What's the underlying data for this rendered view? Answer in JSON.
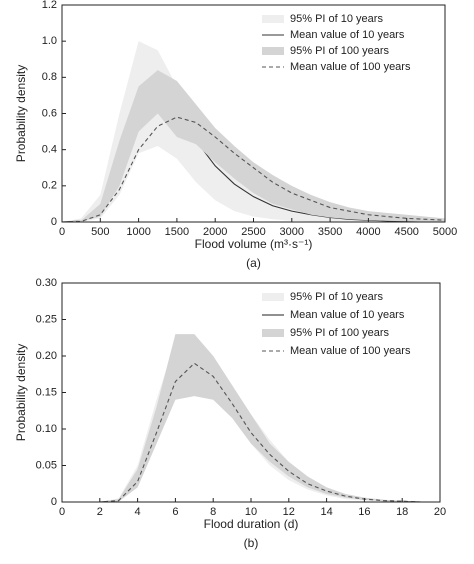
{
  "chart_data": [
    {
      "type": "line",
      "caption": "(a)",
      "xlabel": "Flood volume (m³·s⁻¹)",
      "ylabel": "Probability density",
      "xlim": [
        0,
        5000
      ],
      "xticks": [
        0,
        500,
        1000,
        1500,
        2000,
        2500,
        3000,
        3500,
        4000,
        4500,
        5000
      ],
      "ylim": [
        0,
        1.2
      ],
      "yticks": [
        0,
        0.2,
        0.4,
        0.6,
        0.8,
        {
          "value": 1,
          "label": "1.0"
        },
        1.2
      ],
      "legend": "upper right",
      "x": [
        0,
        250,
        500,
        750,
        1000,
        1250,
        1500,
        1750,
        2000,
        2250,
        2500,
        2750,
        3000,
        3250,
        3500,
        3750,
        4000,
        4250,
        4500,
        4750,
        5000
      ],
      "series": [
        {
          "name": "95% PI of 10 years",
          "style": "band",
          "color": "#eeeeee",
          "lower": [
            0,
            0,
            0.02,
            0.15,
            0.38,
            0.42,
            0.35,
            0.22,
            0.12,
            0.06,
            0.03,
            0.015,
            0.007,
            0.003,
            0.001,
            0,
            0,
            0,
            0,
            0,
            0
          ],
          "upper": [
            0,
            0.02,
            0.15,
            0.6,
            1.0,
            0.95,
            0.75,
            0.55,
            0.4,
            0.3,
            0.22,
            0.16,
            0.12,
            0.09,
            0.07,
            0.05,
            0.04,
            0.03,
            0.02,
            0.015,
            0.01
          ]
        },
        {
          "name": "Mean value of 10 years",
          "style": "solid",
          "color": "#333333",
          "values": [
            0,
            0.005,
            0.06,
            0.3,
            0.62,
            0.73,
            0.62,
            0.45,
            0.31,
            0.21,
            0.14,
            0.09,
            0.06,
            0.04,
            0.025,
            0.015,
            0.01,
            0.006,
            0.004,
            0.002,
            0.001
          ]
        },
        {
          "name": "95% PI of 100 years",
          "style": "band",
          "color": "#d4d4d4",
          "lower": [
            0,
            0.002,
            0.03,
            0.2,
            0.5,
            0.6,
            0.47,
            0.43,
            0.33,
            0.24,
            0.16,
            0.1,
            0.07,
            0.04,
            0.025,
            0.015,
            0.01,
            0.006,
            0.004,
            0.002,
            0.001
          ],
          "upper": [
            0,
            0.008,
            0.1,
            0.45,
            0.75,
            0.84,
            0.78,
            0.65,
            0.52,
            0.42,
            0.33,
            0.26,
            0.2,
            0.15,
            0.11,
            0.08,
            0.06,
            0.05,
            0.04,
            0.03,
            0.02
          ]
        },
        {
          "name": "Mean value of 100 years",
          "style": "dashed",
          "color": "#555555",
          "values": [
            0,
            0.003,
            0.04,
            0.18,
            0.4,
            0.53,
            0.58,
            0.55,
            0.47,
            0.38,
            0.3,
            0.22,
            0.16,
            0.12,
            0.08,
            0.06,
            0.04,
            0.03,
            0.02,
            0.015,
            0.01
          ]
        }
      ]
    },
    {
      "type": "line",
      "caption": "(b)",
      "xlabel": "Flood duration (d)",
      "ylabel": "Probability density",
      "xlim": [
        0,
        20
      ],
      "xticks": [
        0,
        2,
        4,
        6,
        8,
        10,
        12,
        14,
        16,
        18,
        20
      ],
      "ylim": [
        0,
        0.3
      ],
      "yticks": [
        0,
        0.05,
        {
          "value": 0.1,
          "label": "0.10"
        },
        0.15,
        {
          "value": 0.2,
          "label": "0.20"
        },
        0.25,
        {
          "value": 0.3,
          "label": "0.30"
        }
      ],
      "legend": "upper right",
      "x": [
        0,
        1,
        2,
        3,
        4,
        5,
        6,
        7,
        8,
        9,
        10,
        11,
        12,
        13,
        14,
        15,
        16,
        17,
        18,
        19,
        20
      ],
      "series": [
        {
          "name": "95% PI of 10 years",
          "style": "band",
          "color": "#eeeeee",
          "lower": [
            0,
            0,
            0,
            0,
            0.02,
            0.08,
            0.15,
            0.16,
            0.15,
            0.12,
            0.08,
            0.05,
            0.03,
            0.017,
            0.009,
            0.004,
            0.002,
            0.001,
            0,
            0,
            0
          ],
          "upper": [
            0,
            0,
            0,
            0.005,
            0.05,
            0.14,
            0.22,
            0.23,
            0.2,
            0.16,
            0.12,
            0.085,
            0.055,
            0.035,
            0.02,
            0.011,
            0.006,
            0.003,
            0.001,
            0,
            0
          ]
        },
        {
          "name": "Mean value of 10 years",
          "style": "solid",
          "color": "#222222",
          "values": [
            0,
            0,
            0,
            0.002,
            0.03,
            0.1,
            0.17,
            0.19,
            0.17,
            0.13,
            0.09,
            0.06,
            0.038,
            0.022,
            0.013,
            0.007,
            0.004,
            0.002,
            0.001,
            0,
            0
          ]
        },
        {
          "name": "95% PI of 100 years",
          "style": "band",
          "color": "#d4d4d4",
          "lower": [
            0,
            0,
            0,
            0.001,
            0.02,
            0.08,
            0.14,
            0.145,
            0.14,
            0.115,
            0.08,
            0.055,
            0.035,
            0.02,
            0.011,
            0.006,
            0.003,
            0.001,
            0,
            0,
            0
          ],
          "upper": [
            0,
            0,
            0,
            0.004,
            0.045,
            0.13,
            0.23,
            0.23,
            0.2,
            0.16,
            0.12,
            0.08,
            0.055,
            0.035,
            0.02,
            0.011,
            0.006,
            0.003,
            0.0015,
            0.0005,
            0
          ]
        },
        {
          "name": "Mean value of 100 years",
          "style": "dashed",
          "color": "#555555",
          "values": [
            0,
            0,
            0,
            0.002,
            0.028,
            0.095,
            0.165,
            0.19,
            0.172,
            0.135,
            0.095,
            0.065,
            0.042,
            0.025,
            0.015,
            0.008,
            0.004,
            0.002,
            0.001,
            0,
            0
          ]
        }
      ]
    }
  ]
}
